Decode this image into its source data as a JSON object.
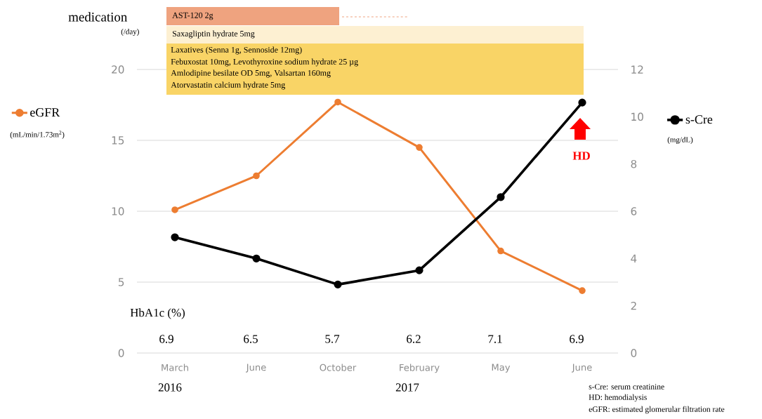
{
  "chart_data": {
    "type": "line",
    "categories": [
      "March",
      "June",
      "October",
      "February",
      "May",
      "June"
    ],
    "series": [
      {
        "name": "eGFR",
        "color": "#ed7d31",
        "values": [
          10.1,
          12.5,
          17.7,
          14.5,
          7.2,
          4.4
        ]
      },
      {
        "name": "s-Cre",
        "color": "#000000",
        "axis": "y2",
        "values": [
          4.9,
          4.0,
          2.9,
          3.5,
          6.6,
          10.6
        ]
      }
    ],
    "ylim": [
      0,
      20
    ],
    "yticks": [
      0,
      5,
      10,
      15,
      20
    ],
    "y2lim": [
      0,
      12
    ],
    "y2ticks": [
      0,
      2,
      4,
      6,
      8,
      10,
      12
    ],
    "grid": "y",
    "legend": "left",
    "marker": "circle",
    "annotations": [
      "medication",
      "(/day)",
      "AST-120 2g",
      "Saxagliptin hydrate 5mg",
      "Laxatives (Senna 1g, Sennoside 12mg)",
      "Febuxostat 10mg, Levothyroxine sodium hydrate 25 µg",
      "Amlodipine besilate OD 5mg, Valsartan 160mg",
      "Atorvastatin calcium hydrate 5mg",
      "HD",
      "HbA1c (%)",
      "6.9",
      "6.5",
      "5.7",
      "6.2",
      "7.1",
      "6.9",
      "2016",
      "2017",
      "s-Cre: serum creatinine",
      "HD: hemodialysis",
      "eGFR: estimated glomerular filtration rate",
      "(mL/min/1.73m$^{2}$)",
      "(mg/dL)"
    ]
  }
}
